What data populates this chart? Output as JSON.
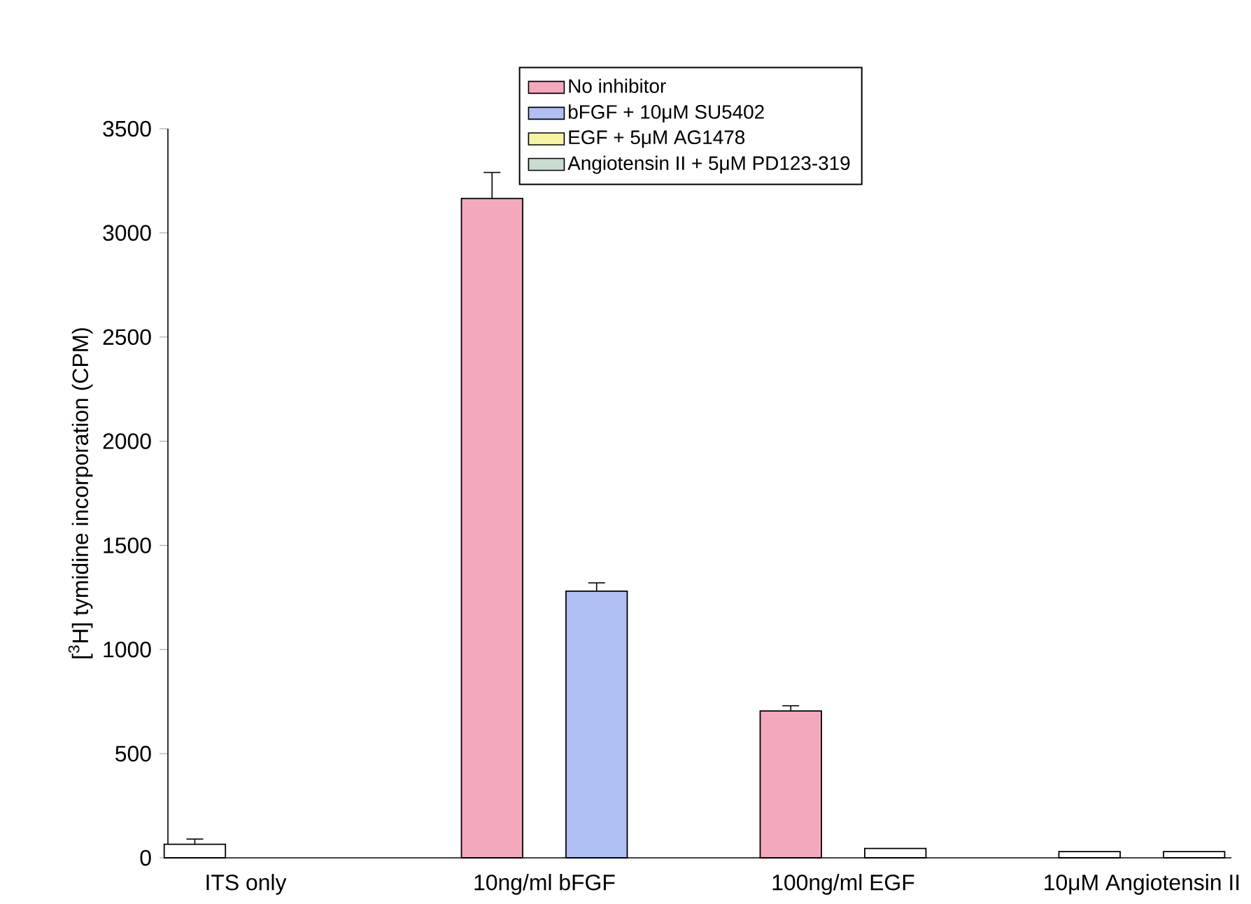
{
  "chart_data": {
    "type": "bar",
    "ylabel": "[$^{3}$H] tymidine incorporation (CPM)",
    "categories": [
      "ITS only",
      "10ng/ml bFGF",
      "100ng/ml EGF",
      "10μM Angiotensin II"
    ],
    "series": [
      {
        "name": "No inhibitor",
        "color": "#f4a8bc",
        "colors": [
          "#ffffff",
          "#f4a8bc",
          "#f4a8bc",
          "#ffffff"
        ],
        "values": [
          65,
          3165,
          705,
          30
        ],
        "errors": [
          25,
          125,
          25,
          null
        ]
      },
      {
        "name": "bFGF + 10μM SU5402",
        "color": "#b0c0f4",
        "values": [
          null,
          1280,
          null,
          null
        ],
        "errors": [
          null,
          40,
          null,
          null
        ]
      },
      {
        "name": "EGF + 5μM AG1478",
        "color": "#f6f4a0",
        "colors": [
          null,
          null,
          "#ffffff",
          null
        ],
        "values": [
          null,
          null,
          45,
          null
        ]
      },
      {
        "name": "Angiotensin II + 5μM PD123-319",
        "color": "#c8dcd0",
        "colors": [
          null,
          null,
          null,
          "#ffffff"
        ],
        "values": [
          null,
          null,
          null,
          30
        ]
      }
    ],
    "ylim": [
      0,
      3500
    ],
    "yticks": [
      0,
      500,
      1000,
      1500,
      2000,
      2500,
      3000,
      3500
    ],
    "legend": "top",
    "grid": false
  }
}
